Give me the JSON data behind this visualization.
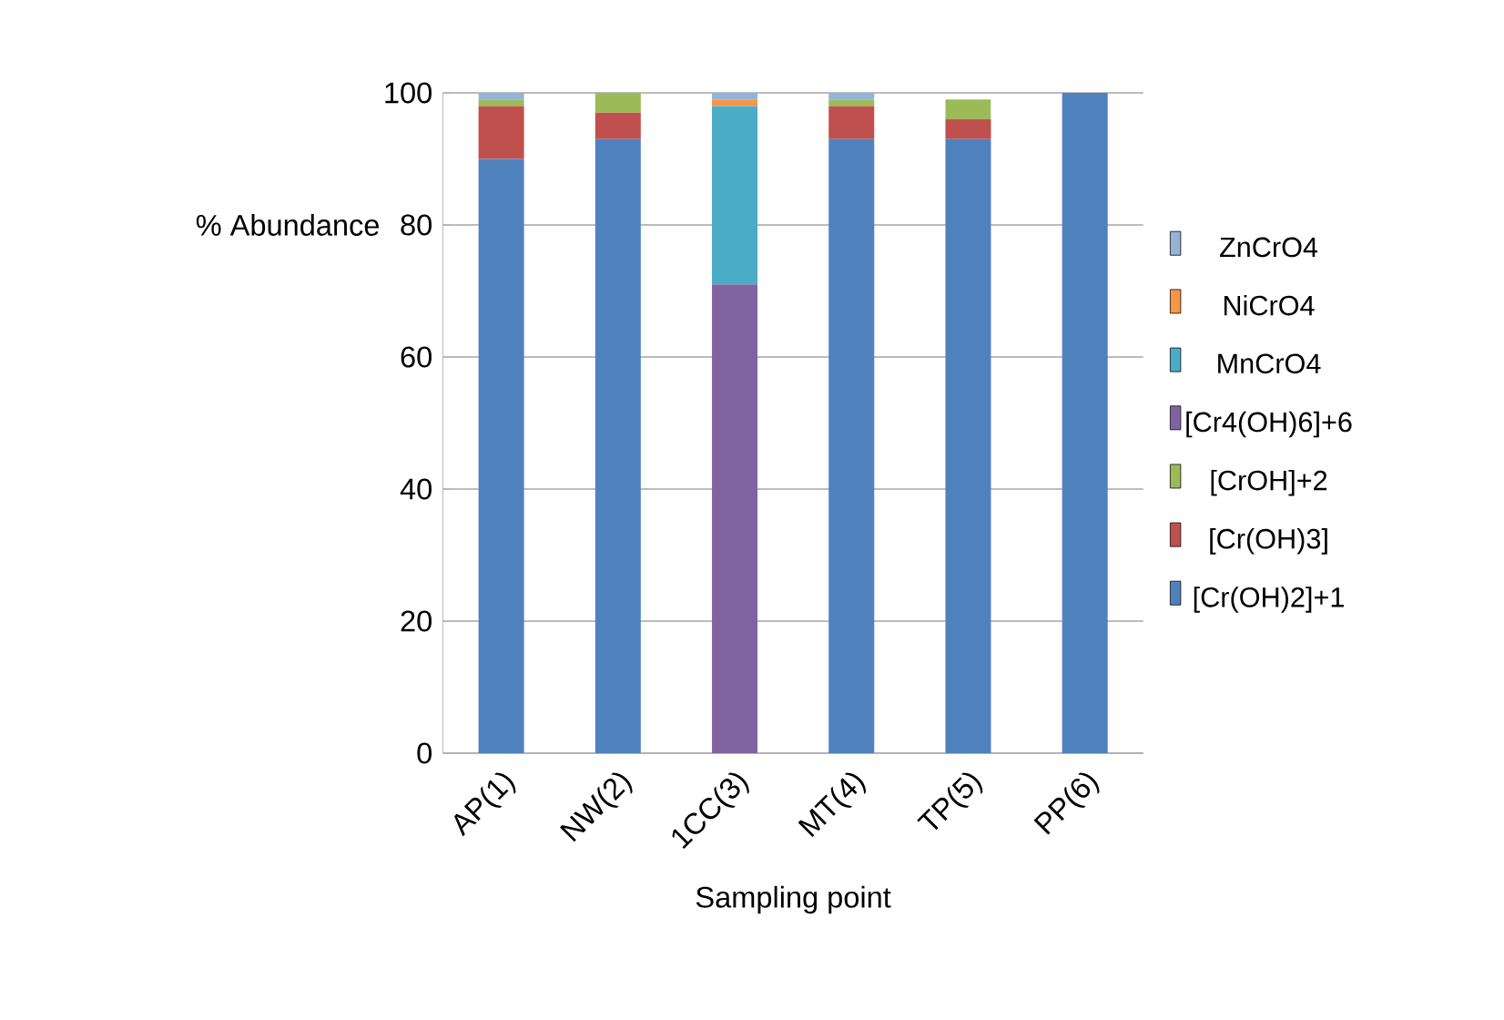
{
  "chart_data": {
    "type": "bar",
    "stacked": true,
    "xlabel": "Sampling point",
    "ylabel": "% Abundance",
    "categories": [
      "AP(1)",
      "NW(2)",
      "1CC(3)",
      "MT(4)",
      "TP(5)",
      "PP(6)"
    ],
    "series": [
      {
        "name": "[Cr(OH)2]+1",
        "color": "#4f81bd",
        "values": [
          90,
          93,
          0,
          93,
          93,
          100
        ]
      },
      {
        "name": "[Cr(OH)3]",
        "color": "#c0504d",
        "values": [
          8,
          4,
          0,
          5,
          3,
          0
        ]
      },
      {
        "name": "[CrOH]+2",
        "color": "#9bbb59",
        "values": [
          1,
          3,
          0,
          1,
          3,
          0
        ]
      },
      {
        "name": "[Cr4(OH)6]+6",
        "color": "#8064a2",
        "values": [
          0,
          0,
          71,
          0,
          0,
          0
        ]
      },
      {
        "name": "MnCrO4",
        "color": "#4bacc6",
        "values": [
          0,
          0,
          27,
          0,
          0,
          0
        ]
      },
      {
        "name": "NiCrO4",
        "color": "#f79646",
        "values": [
          0,
          0,
          1,
          0,
          0,
          0
        ]
      },
      {
        "name": "ZnCrO4",
        "color": "#95b3d7",
        "values": [
          1,
          0,
          1,
          1,
          0,
          0
        ]
      }
    ],
    "ylim": [
      0,
      100
    ],
    "yticks": [
      0,
      20,
      40,
      60,
      80,
      100
    ],
    "grid": "y",
    "legend": "right"
  }
}
